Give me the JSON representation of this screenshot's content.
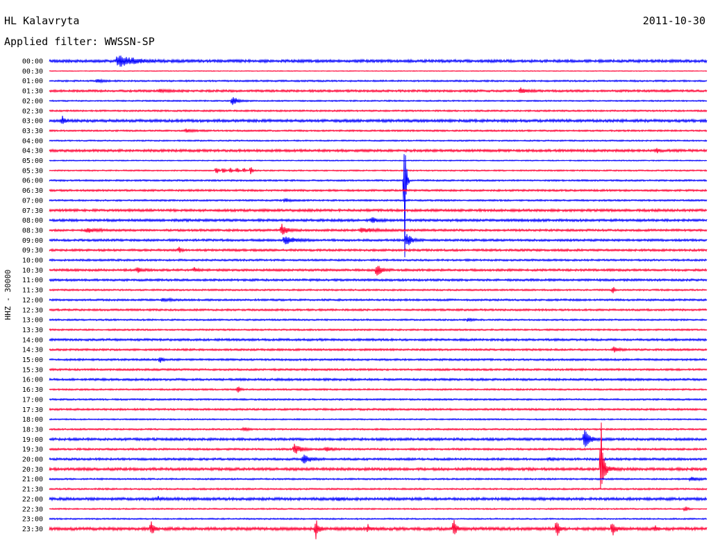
{
  "header": {
    "station": "HL Kalavryta",
    "date": "2011-10-30",
    "filter": "Applied filter: WWSSN-SP"
  },
  "chart_data": {
    "type": "line",
    "title": "HL Kalavryta",
    "ylabel": "HHZ - 30000",
    "colors": [
      "#0000ff",
      "#ff0033"
    ],
    "times": [
      "00:00",
      "00:30",
      "01:00",
      "01:30",
      "02:00",
      "02:30",
      "03:00",
      "03:30",
      "04:00",
      "04:30",
      "05:00",
      "05:30",
      "06:00",
      "06:30",
      "07:00",
      "07:30",
      "08:00",
      "08:30",
      "09:00",
      "09:30",
      "10:00",
      "10:30",
      "11:00",
      "11:30",
      "12:00",
      "12:30",
      "13:00",
      "13:30",
      "14:00",
      "14:30",
      "15:00",
      "15:30",
      "16:00",
      "16:30",
      "17:00",
      "17:30",
      "18:00",
      "18:30",
      "19:00",
      "19:30",
      "20:00",
      "20:30",
      "21:00",
      "21:30",
      "22:00",
      "22:30",
      "23:00",
      "23:30"
    ],
    "noise": [
      2.0,
      0.6,
      1.2,
      1.6,
      1.0,
      1.2,
      2.0,
      1.2,
      1.0,
      1.8,
      0.8,
      1.0,
      1.2,
      1.4,
      1.2,
      1.8,
      1.8,
      1.6,
      1.6,
      1.6,
      1.4,
      1.6,
      1.6,
      1.2,
      1.4,
      1.4,
      1.2,
      1.2,
      1.6,
      1.4,
      1.4,
      1.4,
      1.6,
      1.2,
      1.2,
      1.4,
      1.0,
      1.2,
      1.8,
      1.4,
      1.6,
      2.0,
      1.2,
      1.2,
      2.0,
      1.0,
      1.0,
      2.2
    ],
    "events": [
      {
        "row": 0,
        "x": 170,
        "a": 10,
        "w": 30
      },
      {
        "row": 2,
        "x": 140,
        "a": 3,
        "w": 10
      },
      {
        "row": 3,
        "x": 750,
        "a": 4,
        "w": 12
      },
      {
        "row": 3,
        "x": 230,
        "a": 2,
        "w": 20
      },
      {
        "row": 4,
        "x": 335,
        "a": 7,
        "w": 10
      },
      {
        "row": 6,
        "x": 90,
        "a": 6,
        "w": 6
      },
      {
        "row": 7,
        "x": 268,
        "a": 2.5,
        "w": 16
      },
      {
        "row": 9,
        "x": 946,
        "a": 3,
        "w": 4
      },
      {
        "row": 11,
        "x": 312,
        "a": 7,
        "w": 2
      },
      {
        "row": 11,
        "x": 322,
        "a": 5,
        "w": 2
      },
      {
        "row": 11,
        "x": 332,
        "a": 4,
        "w": 2
      },
      {
        "row": 11,
        "x": 342,
        "a": 4,
        "w": 2
      },
      {
        "row": 11,
        "x": 352,
        "a": 4,
        "w": 2
      },
      {
        "row": 11,
        "x": 362,
        "a": 9,
        "w": 2
      },
      {
        "row": 12,
        "x": 583,
        "a": 120,
        "w": 2
      },
      {
        "row": 14,
        "x": 410,
        "a": 2.5,
        "w": 10
      },
      {
        "row": 16,
        "x": 536,
        "a": 4,
        "w": 10
      },
      {
        "row": 17,
        "x": 406,
        "a": 9,
        "w": 10
      },
      {
        "row": 17,
        "x": 125,
        "a": 3,
        "w": 22
      },
      {
        "row": 17,
        "x": 520,
        "a": 3,
        "w": 28
      },
      {
        "row": 18,
        "x": 410,
        "a": 7,
        "w": 18
      },
      {
        "row": 18,
        "x": 586,
        "a": 12,
        "w": 8
      },
      {
        "row": 19,
        "x": 258,
        "a": 4,
        "w": 4
      },
      {
        "row": 21,
        "x": 543,
        "a": 10,
        "w": 8
      },
      {
        "row": 21,
        "x": 198,
        "a": 4,
        "w": 8
      },
      {
        "row": 21,
        "x": 280,
        "a": 3,
        "w": 8
      },
      {
        "row": 23,
        "x": 883,
        "a": 6,
        "w": 2
      },
      {
        "row": 24,
        "x": 235,
        "a": 3,
        "w": 14
      },
      {
        "row": 26,
        "x": 675,
        "a": 3,
        "w": 6
      },
      {
        "row": 29,
        "x": 884,
        "a": 4,
        "w": 10
      },
      {
        "row": 30,
        "x": 231,
        "a": 5,
        "w": 4
      },
      {
        "row": 33,
        "x": 343,
        "a": 5,
        "w": 4
      },
      {
        "row": 37,
        "x": 352,
        "a": 3,
        "w": 8
      },
      {
        "row": 38,
        "x": 842,
        "a": 14,
        "w": 10
      },
      {
        "row": 39,
        "x": 424,
        "a": 8,
        "w": 12
      },
      {
        "row": 39,
        "x": 470,
        "a": 3,
        "w": 14
      },
      {
        "row": 40,
        "x": 437,
        "a": 7,
        "w": 14
      },
      {
        "row": 40,
        "x": 790,
        "a": 2.5,
        "w": 8
      },
      {
        "row": 41,
        "x": 866,
        "a": 80,
        "w": 2
      },
      {
        "row": 41,
        "x": 870,
        "a": 12,
        "w": 10
      },
      {
        "row": 42,
        "x": 995,
        "a": 3,
        "w": 16
      },
      {
        "row": 44,
        "x": 487,
        "a": 3,
        "w": 4
      },
      {
        "row": 44,
        "x": 228,
        "a": 3,
        "w": 3
      },
      {
        "row": 45,
        "x": 987,
        "a": 4,
        "w": 4
      },
      {
        "row": 47,
        "x": 218,
        "a": 14,
        "w": 4
      },
      {
        "row": 47,
        "x": 455,
        "a": 16,
        "w": 5
      },
      {
        "row": 47,
        "x": 530,
        "a": 6,
        "w": 3
      },
      {
        "row": 47,
        "x": 654,
        "a": 14,
        "w": 4
      },
      {
        "row": 47,
        "x": 802,
        "a": 16,
        "w": 4
      },
      {
        "row": 47,
        "x": 882,
        "a": 12,
        "w": 6
      },
      {
        "row": 47,
        "x": 944,
        "a": 4,
        "w": 3
      }
    ]
  }
}
